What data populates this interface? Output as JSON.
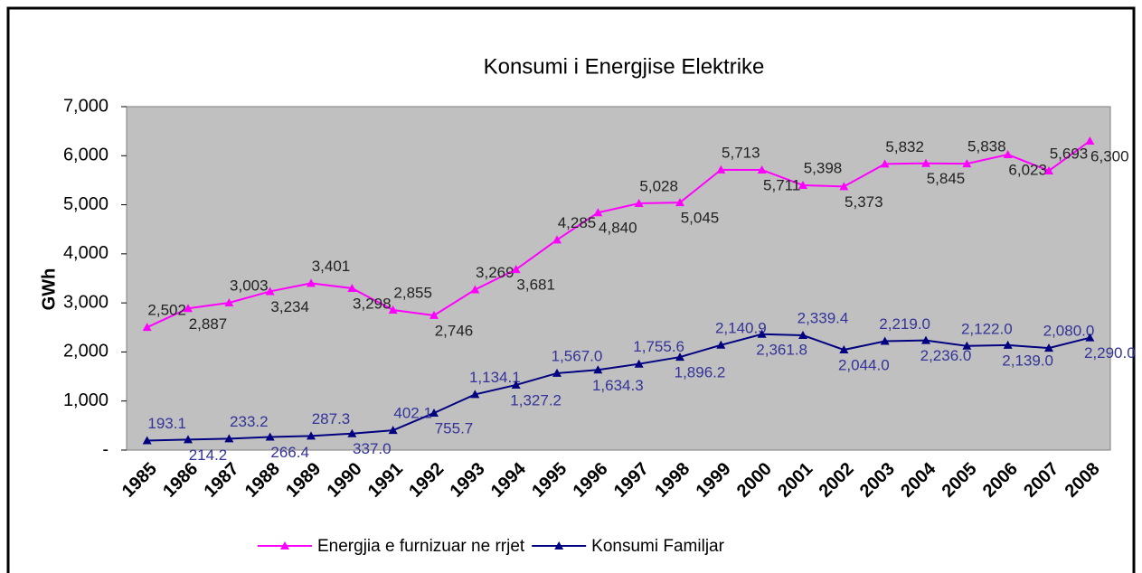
{
  "chart_data": {
    "type": "line",
    "title": "Konsumi i Energjise Elektrike",
    "y_label": "GWh",
    "categories": [
      "1985",
      "1986",
      "1987",
      "1988",
      "1989",
      "1990",
      "1991",
      "1992",
      "1993",
      "1994",
      "1995",
      "1996",
      "1997",
      "1998",
      "1999",
      "2000",
      "2001",
      "2002",
      "2003",
      "2004",
      "2005",
      "2006",
      "2007",
      "2008"
    ],
    "ylim": [
      0,
      7000
    ],
    "yticks": [
      {
        "value": 0,
        "label": "-"
      },
      {
        "value": 1000,
        "label": "1,000"
      },
      {
        "value": 2000,
        "label": "2,000"
      },
      {
        "value": 3000,
        "label": "3,000"
      },
      {
        "value": 4000,
        "label": "4,000"
      },
      {
        "value": 5000,
        "label": "5,000"
      },
      {
        "value": 6000,
        "label": "6,000"
      },
      {
        "value": 7000,
        "label": "7,000"
      }
    ],
    "legend": "bottom",
    "series": [
      {
        "name": "Energjia e furnizuar ne rrjet",
        "color": "#ff00ff",
        "label_color": "#222222",
        "values": [
          2502,
          2887,
          3003,
          3234,
          3401,
          3298,
          2855,
          2746,
          3269,
          3681,
          4285,
          4840,
          5028,
          5045,
          5713,
          5711,
          5398,
          5373,
          5832,
          5845,
          5838,
          6023,
          5693,
          6300
        ],
        "value_labels": [
          "2,502",
          "2,887",
          "3,003",
          "3,234",
          "3,401",
          "3,298",
          "2,855",
          "2,746",
          "3,269",
          "3,681",
          "4,285",
          "4,840",
          "5,028",
          "5,045",
          "5,713",
          "5,711",
          "5,398",
          "5,373",
          "5,832",
          "5,845",
          "5,838",
          "6,023",
          "5,693",
          "6,300"
        ]
      },
      {
        "name": "Konsumi Familjar",
        "color": "#000080",
        "label_color": "#333399",
        "values": [
          193.1,
          214.2,
          233.2,
          266.4,
          287.3,
          337.0,
          402.1,
          755.7,
          1134.1,
          1327.2,
          1567.0,
          1634.3,
          1755.6,
          1896.2,
          2140.9,
          2361.8,
          2339.4,
          2044.0,
          2219.0,
          2236.0,
          2122.0,
          2139.0,
          2080.0,
          2290.0
        ],
        "value_labels": [
          "193.1",
          "214.2",
          "233.2",
          "266.4",
          "287.3",
          "337.0",
          "402.1",
          "755.7",
          "1,134.1",
          "1,327.2",
          "1,567.0",
          "1,634.3",
          "1,755.6",
          "1,896.2",
          "2,140.9",
          "2,361.8",
          "2,339.4",
          "2,044.0",
          "2,219.0",
          "2,236.0",
          "2,122.0",
          "2,139.0",
          "2,080.0",
          "2,290.0"
        ]
      }
    ]
  }
}
